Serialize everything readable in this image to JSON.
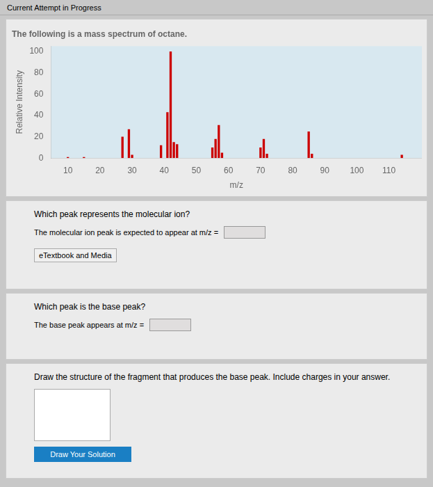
{
  "chart_data": {
    "type": "bar",
    "title": "The following is a mass spectrum of octane.",
    "xlabel": "m/z",
    "ylabel": "Relative Intensity",
    "x": [
      10,
      15,
      27,
      29,
      30,
      39,
      41,
      42,
      43,
      44,
      55,
      56,
      57,
      58,
      70,
      71,
      72,
      85,
      86,
      114
    ],
    "values": [
      1,
      1,
      20,
      27,
      3,
      12,
      43,
      100,
      15,
      13,
      10,
      18,
      31,
      5,
      10,
      18,
      4,
      25,
      4,
      3
    ],
    "color": "#cc0000",
    "xlim": [
      10,
      115
    ],
    "xticks": [
      10,
      20,
      30,
      40,
      50,
      60,
      70,
      80,
      90,
      100,
      110
    ],
    "ylim": [
      0,
      105
    ],
    "yticks": [
      0,
      20,
      40,
      60,
      80,
      100
    ],
    "grid": false,
    "annotations": [
      "Current Attempt in Progress",
      "Which peak represents the molecular ion?",
      "The molecular ion peak is expected to appear at m/z =",
      "eTextbook and Media",
      "Which peak is the base peak?",
      "The base peak appears at m/z =",
      "Draw the structure of the fragment that produces the base peak. Include charges in your answer.",
      "Draw Your Solution"
    ]
  }
}
